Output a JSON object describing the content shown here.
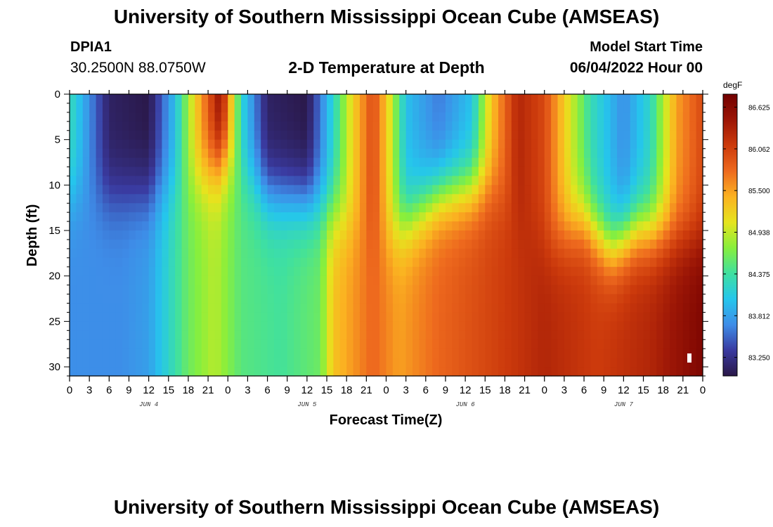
{
  "header": {
    "title": "University of Southern Mississippi Ocean Cube (AMSEAS)",
    "station_id": "DPIA1",
    "station_coords": "30.2500N  88.0750W",
    "subtitle": "2-D Temperature at Depth",
    "model_start_label": "Model Start Time",
    "model_start_value": "06/04/2022 Hour 00"
  },
  "footer": {
    "title": "University of Southern Mississippi Ocean Cube (AMSEAS)"
  },
  "chart_data": {
    "type": "heatmap",
    "title": "2-D Temperature at Depth",
    "xlabel": "Forecast Time(Z)",
    "ylabel": "Depth (ft)",
    "x_tick_labels": [
      "0",
      "3",
      "6",
      "9",
      "12",
      "15",
      "18",
      "21",
      "0",
      "3",
      "6",
      "9",
      "12",
      "15",
      "18",
      "21",
      "0",
      "3",
      "6",
      "9",
      "12",
      "15",
      "18",
      "21",
      "0",
      "3",
      "6",
      "9",
      "12",
      "15",
      "18",
      "21",
      "0"
    ],
    "x_day_labels": [
      "JUN 4",
      "JUN 5",
      "JUN 6",
      "JUN 7"
    ],
    "x_range_hours": [
      0,
      96
    ],
    "y_tick_labels": [
      "0",
      "5",
      "10",
      "15",
      "20",
      "25",
      "30"
    ],
    "y_range": [
      0,
      31
    ],
    "y_inverted": true,
    "colorbar": {
      "unit": "degF",
      "ticks": [
        "86.625",
        "86.062",
        "85.500",
        "84.938",
        "84.375",
        "83.812",
        "83.250"
      ],
      "range": [
        83.0,
        86.8
      ],
      "stops": [
        "#2a1848",
        "#3a3aa0",
        "#3e8de8",
        "#25c6ec",
        "#3fe0a0",
        "#88ef3c",
        "#e6e41e",
        "#fbb221",
        "#ee6a1e",
        "#cc3a0c",
        "#9c1606",
        "#720000"
      ]
    },
    "surface_temp_by_hour": [
      [
        0,
        84.3
      ],
      [
        6,
        83.1
      ],
      [
        12,
        83.0
      ],
      [
        16,
        84.0
      ],
      [
        19,
        85.2
      ],
      [
        23,
        86.6
      ],
      [
        24,
        85.7
      ],
      [
        26,
        84.2
      ],
      [
        30,
        83.1
      ],
      [
        36,
        83.0
      ],
      [
        40,
        84.2
      ],
      [
        43,
        85.2
      ],
      [
        46,
        86.0
      ],
      [
        48,
        85.3
      ],
      [
        51,
        84.0
      ],
      [
        56,
        83.6
      ],
      [
        61,
        84.0
      ],
      [
        64,
        85.3
      ],
      [
        68,
        86.3
      ],
      [
        72,
        86.0
      ],
      [
        76,
        85.0
      ],
      [
        79,
        84.3
      ],
      [
        84,
        83.7
      ],
      [
        88,
        84.2
      ],
      [
        92,
        85.5
      ],
      [
        96,
        86.0
      ]
    ],
    "bottom_temp_by_hour": [
      [
        0,
        83.7
      ],
      [
        8,
        83.7
      ],
      [
        12,
        83.8
      ],
      [
        18,
        84.6
      ],
      [
        22,
        84.9
      ],
      [
        26,
        84.5
      ],
      [
        32,
        84.4
      ],
      [
        38,
        84.6
      ],
      [
        40,
        85.3
      ],
      [
        46,
        85.8
      ],
      [
        50,
        85.5
      ],
      [
        56,
        85.8
      ],
      [
        66,
        86.1
      ],
      [
        72,
        86.3
      ],
      [
        80,
        86.1
      ],
      [
        88,
        86.3
      ],
      [
        96,
        86.7
      ]
    ],
    "mixed_layer_depth_ft_by_hour": [
      [
        0,
        11
      ],
      [
        12,
        11
      ],
      [
        20,
        9
      ],
      [
        24,
        7
      ],
      [
        30,
        11
      ],
      [
        38,
        12
      ],
      [
        42,
        14
      ],
      [
        48,
        16
      ],
      [
        56,
        11
      ],
      [
        64,
        10
      ],
      [
        68,
        13
      ],
      [
        72,
        17
      ],
      [
        78,
        14
      ],
      [
        82,
        17
      ],
      [
        86,
        15
      ],
      [
        96,
        16
      ]
    ]
  }
}
